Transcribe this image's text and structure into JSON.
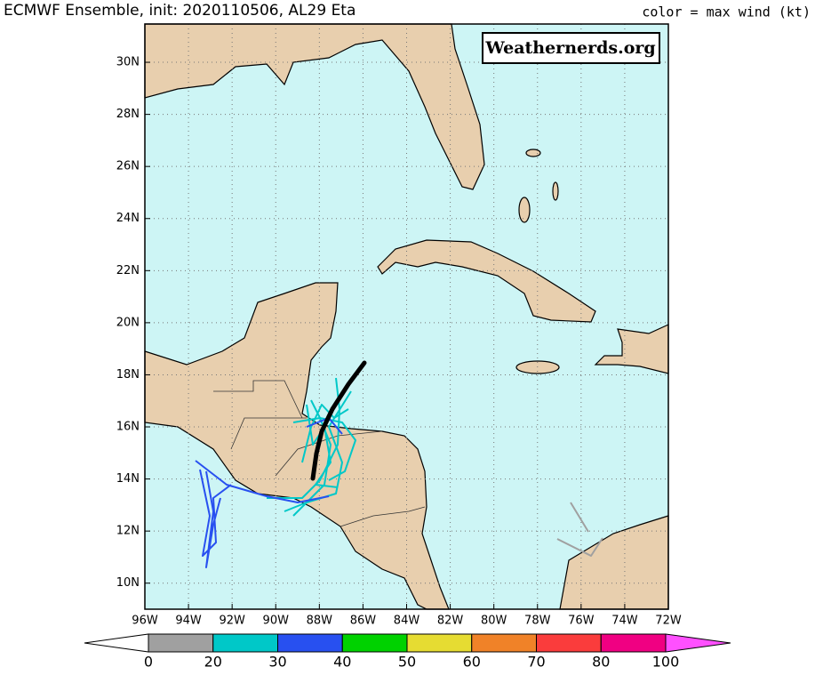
{
  "header": {
    "title": "ECMWF Ensemble, init: 2020110506, AL29 Eta",
    "legend_note": "color = max wind (kt)"
  },
  "watermark": "Weathernerds.org",
  "map": {
    "xlim": [
      -96,
      -72
    ],
    "ylim": [
      9.0,
      31.47
    ],
    "grid": true,
    "xticks": [
      {
        "value": -96,
        "label": "96W"
      },
      {
        "value": -94,
        "label": "94W"
      },
      {
        "value": -92,
        "label": "92W"
      },
      {
        "value": -90,
        "label": "90W"
      },
      {
        "value": -88,
        "label": "88W"
      },
      {
        "value": -86,
        "label": "86W"
      },
      {
        "value": -84,
        "label": "84W"
      },
      {
        "value": -82,
        "label": "82W"
      },
      {
        "value": -80,
        "label": "80W"
      },
      {
        "value": -78,
        "label": "78W"
      },
      {
        "value": -76,
        "label": "76W"
      },
      {
        "value": -74,
        "label": "74W"
      },
      {
        "value": -72,
        "label": "72W"
      }
    ],
    "yticks": [
      {
        "value": 10,
        "label": "10N"
      },
      {
        "value": 12,
        "label": "12N"
      },
      {
        "value": 14,
        "label": "14N"
      },
      {
        "value": 16,
        "label": "16N"
      },
      {
        "value": 18,
        "label": "18N"
      },
      {
        "value": 20,
        "label": "20N"
      },
      {
        "value": 22,
        "label": "22N"
      },
      {
        "value": 24,
        "label": "24N"
      },
      {
        "value": 26,
        "label": "26N"
      },
      {
        "value": 28,
        "label": "28N"
      },
      {
        "value": 30,
        "label": "30N"
      }
    ]
  },
  "colorbar": {
    "ticks": [
      0,
      20,
      30,
      40,
      50,
      60,
      70,
      80,
      100
    ],
    "colors": [
      "#a0a0a0",
      "#00c8c8",
      "#2850f0",
      "#00d200",
      "#e6dc32",
      "#f08228",
      "#fa3c3c",
      "#f00082"
    ],
    "under_color": "#ffffff",
    "over_color": "#ff50ff"
  }
}
